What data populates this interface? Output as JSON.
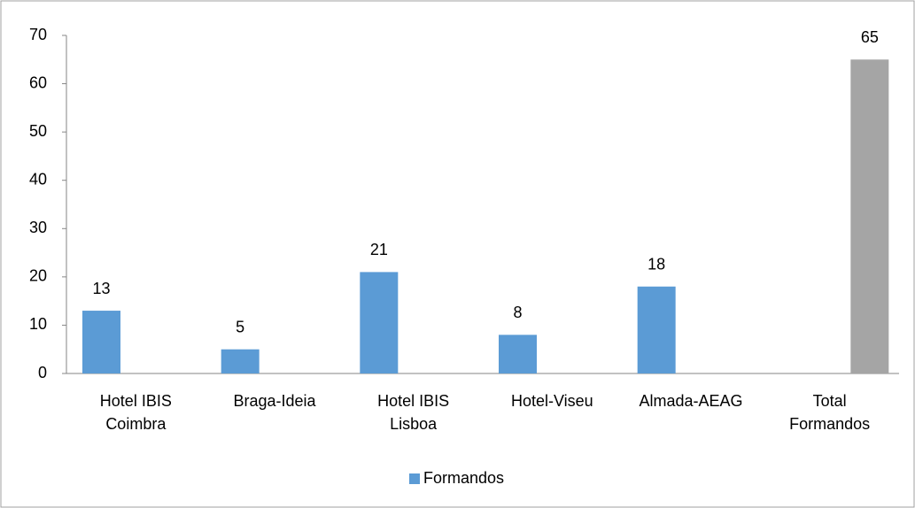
{
  "chart_data": {
    "type": "bar",
    "categories": [
      "Hotel IBIS Coimbra",
      "Braga-Ideia",
      "Hotel IBIS Lisboa",
      "Hotel-Viseu",
      "Almada-AEAG",
      "Total Formandos"
    ],
    "series": [
      {
        "name": "Formandos",
        "color": "#5b9bd5",
        "values": [
          13,
          5,
          21,
          8,
          18,
          null
        ]
      },
      {
        "color": "#a5a5a5",
        "values": [
          null,
          null,
          null,
          null,
          null,
          65
        ]
      }
    ],
    "ylim": [
      0,
      70
    ],
    "yticks": [
      0,
      10,
      20,
      30,
      40,
      50,
      60,
      70
    ],
    "grid": false,
    "legend": "bottom"
  }
}
